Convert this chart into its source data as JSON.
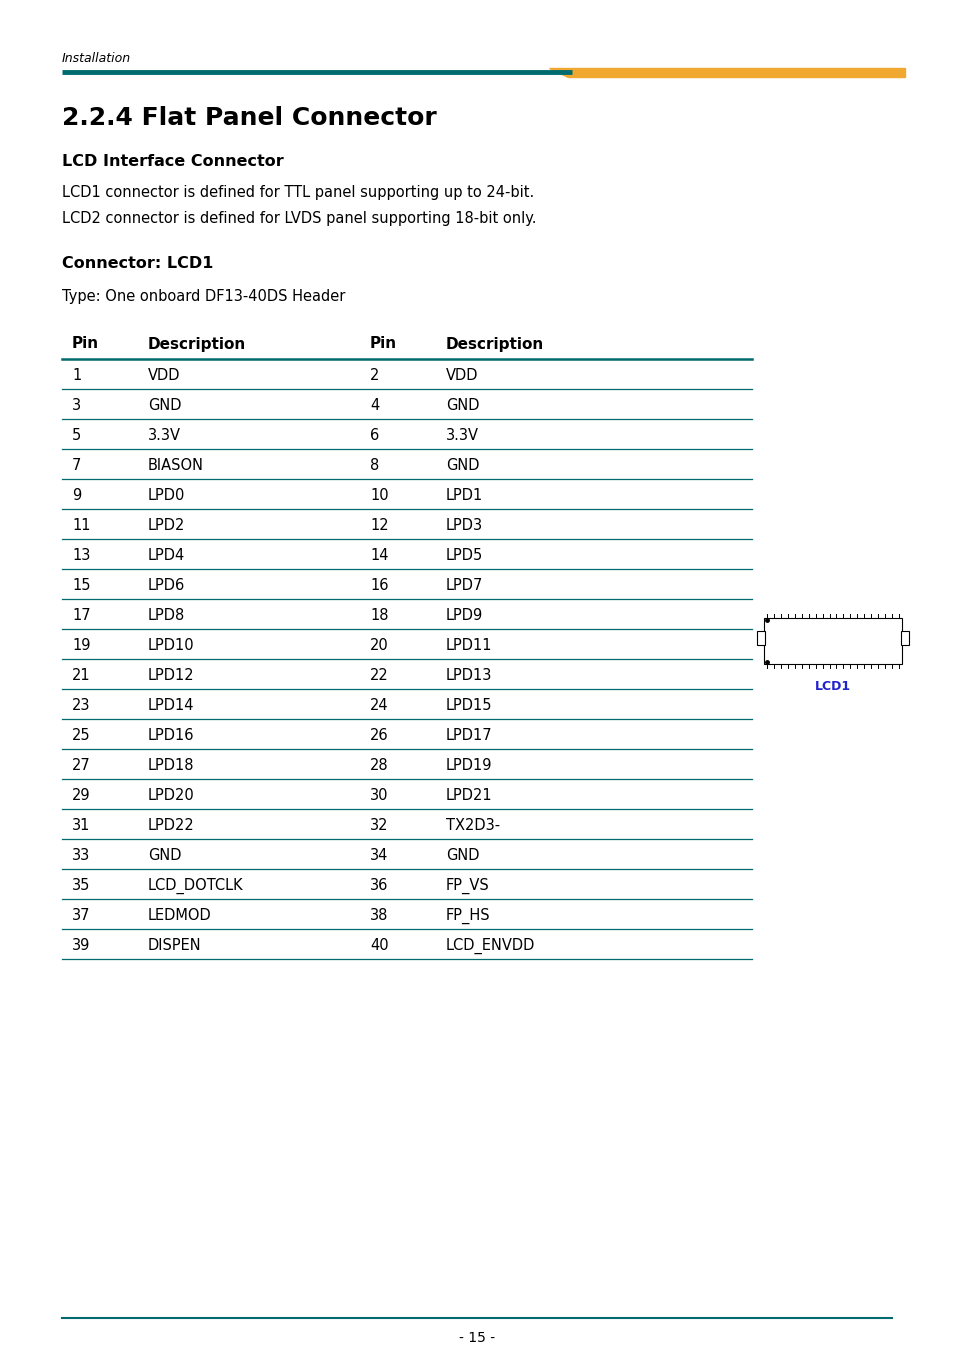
{
  "page_label": "Installation",
  "teal_color": "#006B6F",
  "gold_color": "#F0A830",
  "title": "2.2.4 Flat Panel Connector",
  "subtitle1": "LCD Interface Connector",
  "body1": "LCD1 connector is defined for TTL panel supporting up to 24-bit.",
  "body2": "LCD2 connector is defined for LVDS panel supporting 18-bit only.",
  "connector_label": "Connector: LCD1",
  "connector_type": "Type: One onboard DF13-40DS Header",
  "col_headers": [
    "Pin",
    "Description",
    "Pin",
    "Description"
  ],
  "table_rows": [
    [
      "1",
      "VDD",
      "2",
      "VDD"
    ],
    [
      "3",
      "GND",
      "4",
      "GND"
    ],
    [
      "5",
      "3.3V",
      "6",
      "3.3V"
    ],
    [
      "7",
      "BIASON",
      "8",
      "GND"
    ],
    [
      "9",
      "LPD0",
      "10",
      "LPD1"
    ],
    [
      "11",
      "LPD2",
      "12",
      "LPD3"
    ],
    [
      "13",
      "LPD4",
      "14",
      "LPD5"
    ],
    [
      "15",
      "LPD6",
      "16",
      "LPD7"
    ],
    [
      "17",
      "LPD8",
      "18",
      "LPD9"
    ],
    [
      "19",
      "LPD10",
      "20",
      "LPD11"
    ],
    [
      "21",
      "LPD12",
      "22",
      "LPD13"
    ],
    [
      "23",
      "LPD14",
      "24",
      "LPD15"
    ],
    [
      "25",
      "LPD16",
      "26",
      "LPD17"
    ],
    [
      "27",
      "LPD18",
      "28",
      "LPD19"
    ],
    [
      "29",
      "LPD20",
      "30",
      "LPD21"
    ],
    [
      "31",
      "LPD22",
      "32",
      "TX2D3-"
    ],
    [
      "33",
      "GND",
      "34",
      "GND"
    ],
    [
      "35",
      "LCD_DOTCLK",
      "36",
      "FP_VS"
    ],
    [
      "37",
      "LEDMOD",
      "38",
      "FP_HS"
    ],
    [
      "39",
      "DISPEN",
      "40",
      "LCD_ENVDD"
    ]
  ],
  "page_number": "- 15 -",
  "lcd1_label": "LCD1",
  "lcd1_label_color": "#2222CC"
}
